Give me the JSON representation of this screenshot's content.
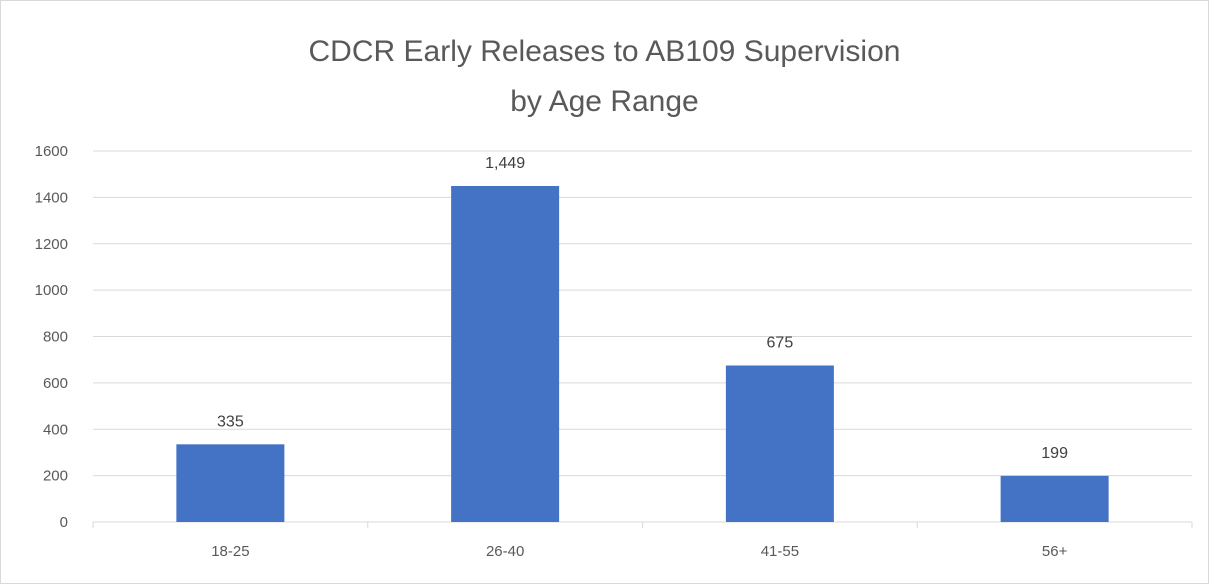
{
  "chart_data": {
    "type": "bar",
    "title_line_1": "CDCR Early Releases to AB109 Supervision",
    "title_line_2": "by Age Range",
    "categories": [
      "18-25",
      "26-40",
      "41-55",
      "56+"
    ],
    "values": [
      335,
      1449,
      675,
      199
    ],
    "data_labels": [
      "335",
      "1,449",
      "675",
      "199"
    ],
    "ylim": [
      0,
      1600
    ],
    "y_ticks": [
      0,
      200,
      400,
      600,
      800,
      1000,
      1200,
      1400,
      1600
    ],
    "grid": true,
    "legend": "none",
    "bar_color": "#4472C4",
    "grid_color": "#d9d9d9",
    "text_color": "#595959"
  }
}
